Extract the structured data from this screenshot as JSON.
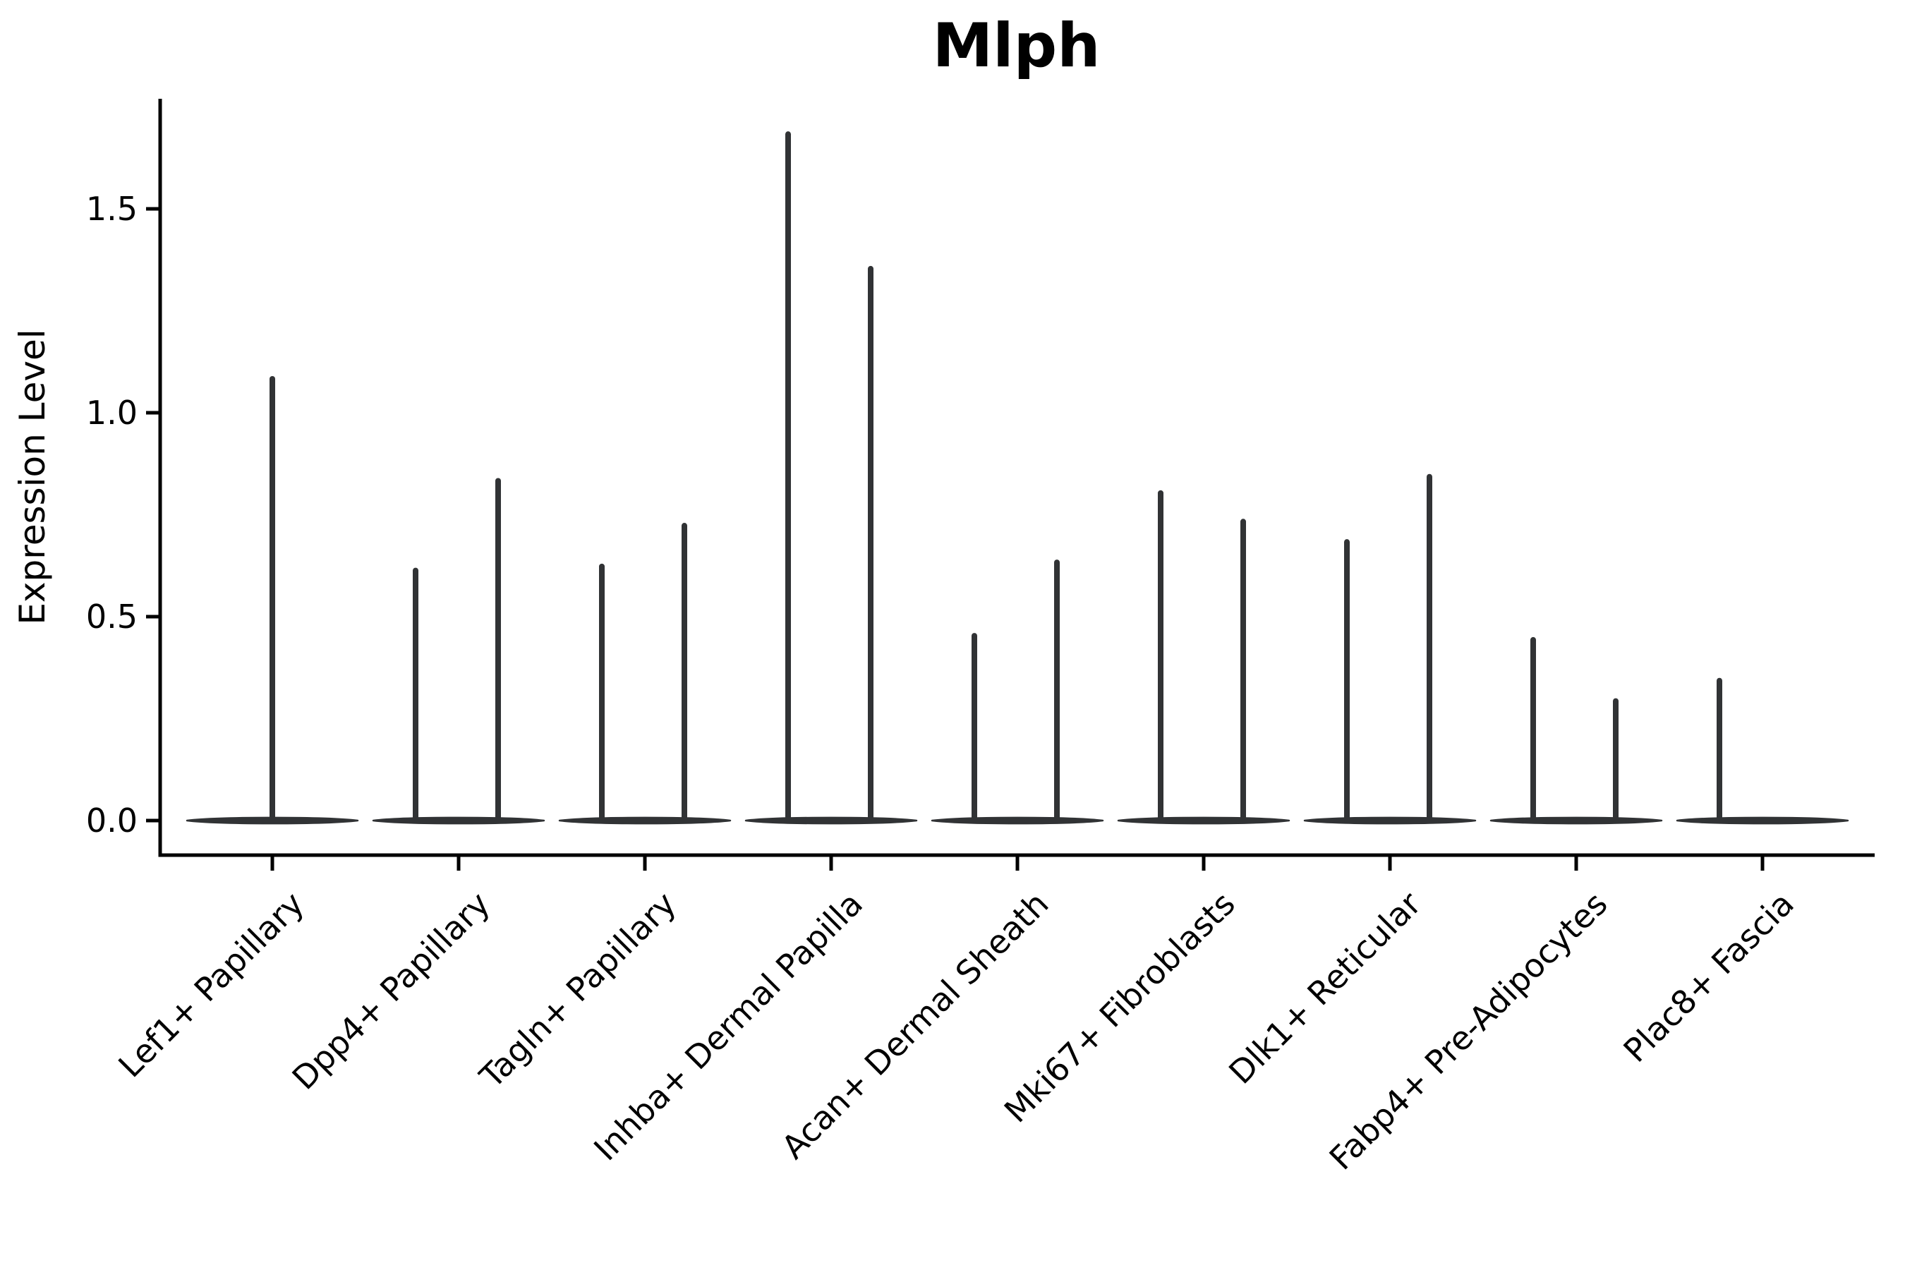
{
  "chart_data": {
    "type": "violin",
    "title": "Mlph",
    "xlabel": "",
    "ylabel": "Expression Level",
    "ylim": [
      -0.09,
      1.77
    ],
    "y_ticks": [
      0.0,
      0.5,
      1.0,
      1.5
    ],
    "y_tick_labels": [
      "0.0",
      "0.5",
      "1.0",
      "1.5"
    ],
    "grid": false,
    "legend_position": "none",
    "categories": [
      "Lef1+ Papillary",
      "Dpp4+ Papillary",
      "Tagln+ Papillary",
      "Inhba+ Dermal Papilla",
      "Acan+ Dermal Sheath",
      "Mki67+ Fibroblasts",
      "Dlk1+ Reticular",
      "Fabp4+ Pre-Adipocytes",
      "Plac8+ Fascia"
    ],
    "violins": [
      {
        "category": "Lef1+ Papillary",
        "baseline_expression": 0.0,
        "spikes": [
          {
            "position": "center",
            "peak_expression": 1.09
          }
        ]
      },
      {
        "category": "Dpp4+ Papillary",
        "baseline_expression": 0.0,
        "spikes": [
          {
            "position": "left",
            "peak_expression": 0.62
          },
          {
            "position": "right",
            "peak_expression": 0.84
          }
        ]
      },
      {
        "category": "Tagln+ Papillary",
        "baseline_expression": 0.0,
        "spikes": [
          {
            "position": "left",
            "peak_expression": 0.63
          },
          {
            "position": "right",
            "peak_expression": 0.73
          }
        ]
      },
      {
        "category": "Inhba+ Dermal Papilla",
        "baseline_expression": 0.0,
        "spikes": [
          {
            "position": "left",
            "peak_expression": 1.69
          },
          {
            "position": "right",
            "peak_expression": 1.36
          }
        ]
      },
      {
        "category": "Acan+ Dermal Sheath",
        "baseline_expression": 0.0,
        "spikes": [
          {
            "position": "left",
            "peak_expression": 0.46
          },
          {
            "position": "right",
            "peak_expression": 0.64
          }
        ]
      },
      {
        "category": "Mki67+ Fibroblasts",
        "baseline_expression": 0.0,
        "spikes": [
          {
            "position": "left",
            "peak_expression": 0.81
          },
          {
            "position": "right",
            "peak_expression": 0.74
          }
        ]
      },
      {
        "category": "Dlk1+ Reticular",
        "baseline_expression": 0.0,
        "spikes": [
          {
            "position": "left",
            "peak_expression": 0.69
          },
          {
            "position": "right",
            "peak_expression": 0.85
          }
        ]
      },
      {
        "category": "Fabp4+ Pre-Adipocytes",
        "baseline_expression": 0.0,
        "spikes": [
          {
            "position": "left",
            "peak_expression": 0.45
          },
          {
            "position": "right",
            "peak_expression": 0.3
          }
        ]
      },
      {
        "category": "Plac8+ Fascia",
        "baseline_expression": 0.0,
        "spikes": [
          {
            "position": "left",
            "peak_expression": 0.35
          }
        ]
      }
    ],
    "style_note": "each violin is a flat density band at 0 with thin vertical density spikes"
  },
  "colors": {
    "violin_stroke": "#313335",
    "axis": "#000000",
    "text": "#000000",
    "background": "#ffffff"
  }
}
